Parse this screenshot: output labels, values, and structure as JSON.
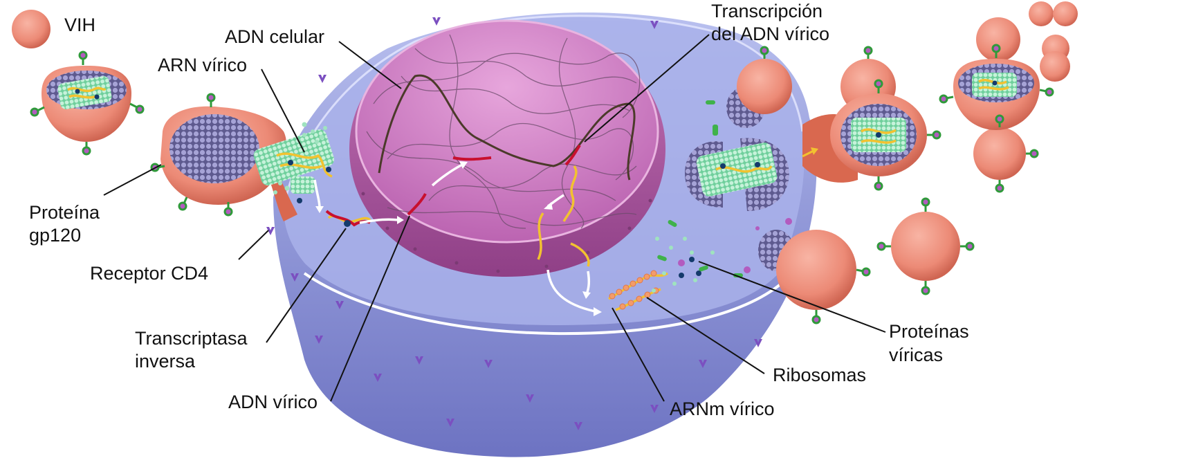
{
  "labels": {
    "vih": "VIH",
    "adn_celular": "ADN celular",
    "arn_virico": "ARN vírico",
    "transcripcion_1": "Transcripción",
    "transcripcion_2": "del ADN vírico",
    "proteina_gp120_1": "Proteína",
    "proteina_gp120_2": "gp120",
    "receptor_cd4": "Receptor CD4",
    "transcriptasa_1": "Transcriptasa",
    "transcriptasa_2": "inversa",
    "adn_virico": "ADN vírico",
    "arnm_virico": "ARNm vírico",
    "ribosomas": "Ribosomas",
    "proteinas_1": "Proteínas",
    "proteinas_2": "víricas"
  },
  "colors": {
    "cell_body": "#8b91d6",
    "cell_top": "#aeb5ea",
    "nucleus_outer": "#b75cab",
    "nucleus_inner": "#d88fcc",
    "virus_shell": "#f08b7a",
    "virus_shell_dark": "#d9684f",
    "capsid": "#9fe3bf",
    "rna": "#f2c230",
    "dna_viral": "#c8102e",
    "spike": "#b35bbf",
    "gp120": "#2f9a3a"
  }
}
